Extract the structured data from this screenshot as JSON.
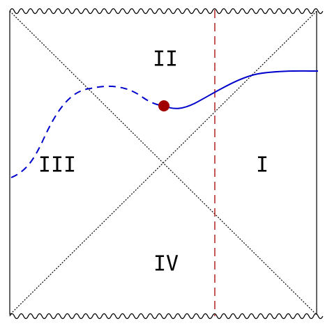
{
  "regions": [
    {
      "label": "II"
    },
    {
      "label": "III"
    },
    {
      "label": "I"
    },
    {
      "label": "IV"
    }
  ]
}
